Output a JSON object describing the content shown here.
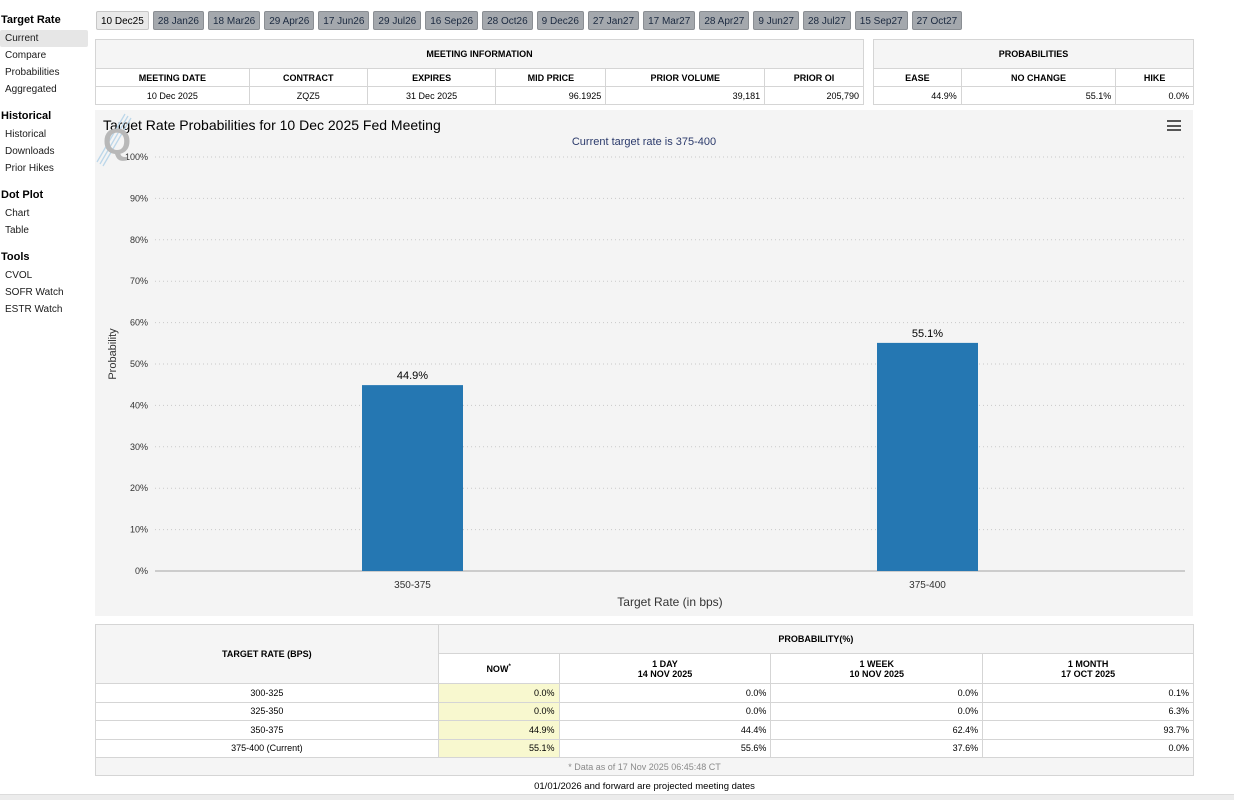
{
  "sidebar": {
    "groups": [
      {
        "title": "Target Rate",
        "items": [
          "Current",
          "Compare",
          "Probabilities",
          "Aggregated"
        ]
      },
      {
        "title": "Historical",
        "items": [
          "Historical",
          "Downloads",
          "Prior Hikes"
        ]
      },
      {
        "title": "Dot Plot",
        "items": [
          "Chart",
          "Table"
        ]
      },
      {
        "title": "Tools",
        "items": [
          "CVOL",
          "SOFR Watch",
          "ESTR Watch"
        ]
      }
    ]
  },
  "tabs": [
    "10 Dec25",
    "28 Jan26",
    "18 Mar26",
    "29 Apr26",
    "17 Jun26",
    "29 Jul26",
    "16 Sep26",
    "28 Oct26",
    "9 Dec26",
    "27 Jan27",
    "17 Mar27",
    "28 Apr27",
    "9 Jun27",
    "28 Jul27",
    "15 Sep27",
    "27 Oct27"
  ],
  "meeting_info": {
    "title": "MEETING INFORMATION",
    "headers": [
      "MEETING DATE",
      "CONTRACT",
      "EXPIRES",
      "MID PRICE",
      "PRIOR VOLUME",
      "PRIOR OI"
    ],
    "values": [
      "10 Dec 2025",
      "ZQZ5",
      "31 Dec 2025",
      "96.1925",
      "39,181",
      "205,790"
    ]
  },
  "probabilities": {
    "title": "PROBABILITIES",
    "headers": [
      "EASE",
      "NO CHANGE",
      "HIKE"
    ],
    "values": [
      "44.9%",
      "55.1%",
      "0.0%"
    ]
  },
  "chart": {
    "title": "Target Rate Probabilities for 10 Dec 2025 Fed Meeting",
    "subtitle": "Current target rate is 375-400"
  },
  "chart_data": {
    "type": "bar",
    "title": "Target Rate Probabilities for 10 Dec 2025 Fed Meeting",
    "subtitle": "Current target rate is 375-400",
    "categories": [
      "350-375",
      "375-400"
    ],
    "values": [
      44.9,
      55.1
    ],
    "value_labels": [
      "44.9%",
      "55.1%"
    ],
    "xlabel": "Target Rate (in bps)",
    "ylabel": "Probability",
    "ylim": [
      0,
      100
    ],
    "yticks": [
      "0%",
      "10%",
      "20%",
      "30%",
      "40%",
      "50%",
      "60%",
      "70%",
      "80%",
      "90%",
      "100%"
    ],
    "grid": true,
    "color": "#2577b2"
  },
  "prob_table": {
    "rate_header": "TARGET RATE (BPS)",
    "group_header": "PROBABILITY(%)",
    "cols": [
      {
        "line1": "NOW",
        "line2": "",
        "mark": "*"
      },
      {
        "line1": "1 DAY",
        "line2": "14 NOV 2025"
      },
      {
        "line1": "1 WEEK",
        "line2": "10 NOV 2025"
      },
      {
        "line1": "1 MONTH",
        "line2": "17 OCT 2025"
      }
    ],
    "rows": [
      {
        "rate": "300-325",
        "vals": [
          "0.0%",
          "0.0%",
          "0.0%",
          "0.1%"
        ]
      },
      {
        "rate": "325-350",
        "vals": [
          "0.0%",
          "0.0%",
          "0.0%",
          "6.3%"
        ]
      },
      {
        "rate": "350-375",
        "vals": [
          "44.9%",
          "44.4%",
          "62.4%",
          "93.7%"
        ]
      },
      {
        "rate": "375-400 (Current)",
        "vals": [
          "55.1%",
          "55.6%",
          "37.6%",
          "0.0%"
        ]
      }
    ],
    "note": "* Data as of 17 Nov 2025 06:45:48 CT"
  },
  "footnote": "01/01/2026 and forward are projected meeting dates"
}
